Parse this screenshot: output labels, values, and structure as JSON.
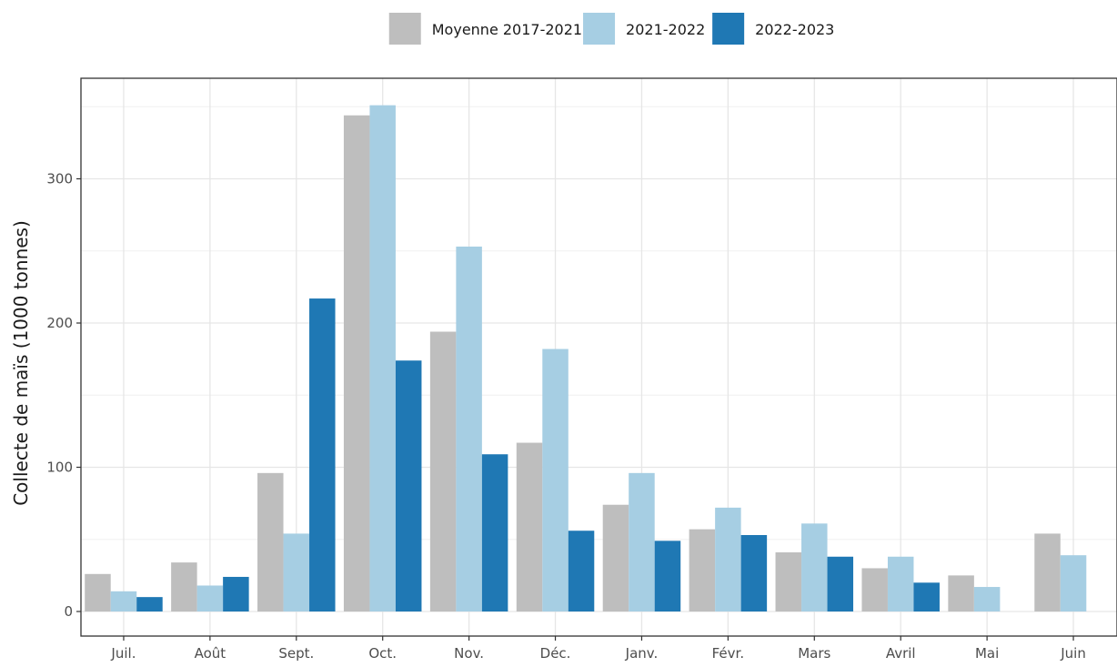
{
  "chart_data": {
    "type": "bar",
    "title": "",
    "xlabel": "",
    "ylabel": "Collecte de maïs (1000 tonnes)",
    "categories": [
      "Juil.",
      "Août",
      "Sept.",
      "Oct.",
      "Nov.",
      "Déc.",
      "Janv.",
      "Févr.",
      "Mars",
      "Avril",
      "Mai",
      "Juin"
    ],
    "series": [
      {
        "name": "Moyenne 2017-2021",
        "color": "#bebebe",
        "values": [
          26,
          34,
          96,
          344,
          194,
          117,
          74,
          57,
          41,
          30,
          25,
          54
        ]
      },
      {
        "name": "2021-2022",
        "color": "#a6cee3",
        "values": [
          14,
          18,
          54,
          351,
          253,
          182,
          96,
          72,
          61,
          38,
          17,
          39
        ]
      },
      {
        "name": "2022-2023",
        "color": "#1f78b4",
        "values": [
          10,
          24,
          217,
          174,
          109,
          56,
          49,
          53,
          38,
          20,
          null,
          null
        ]
      }
    ],
    "ylim": [
      0,
      350
    ],
    "yticks": [
      0,
      100,
      200,
      300
    ],
    "grid": true,
    "legend_position": "top"
  }
}
